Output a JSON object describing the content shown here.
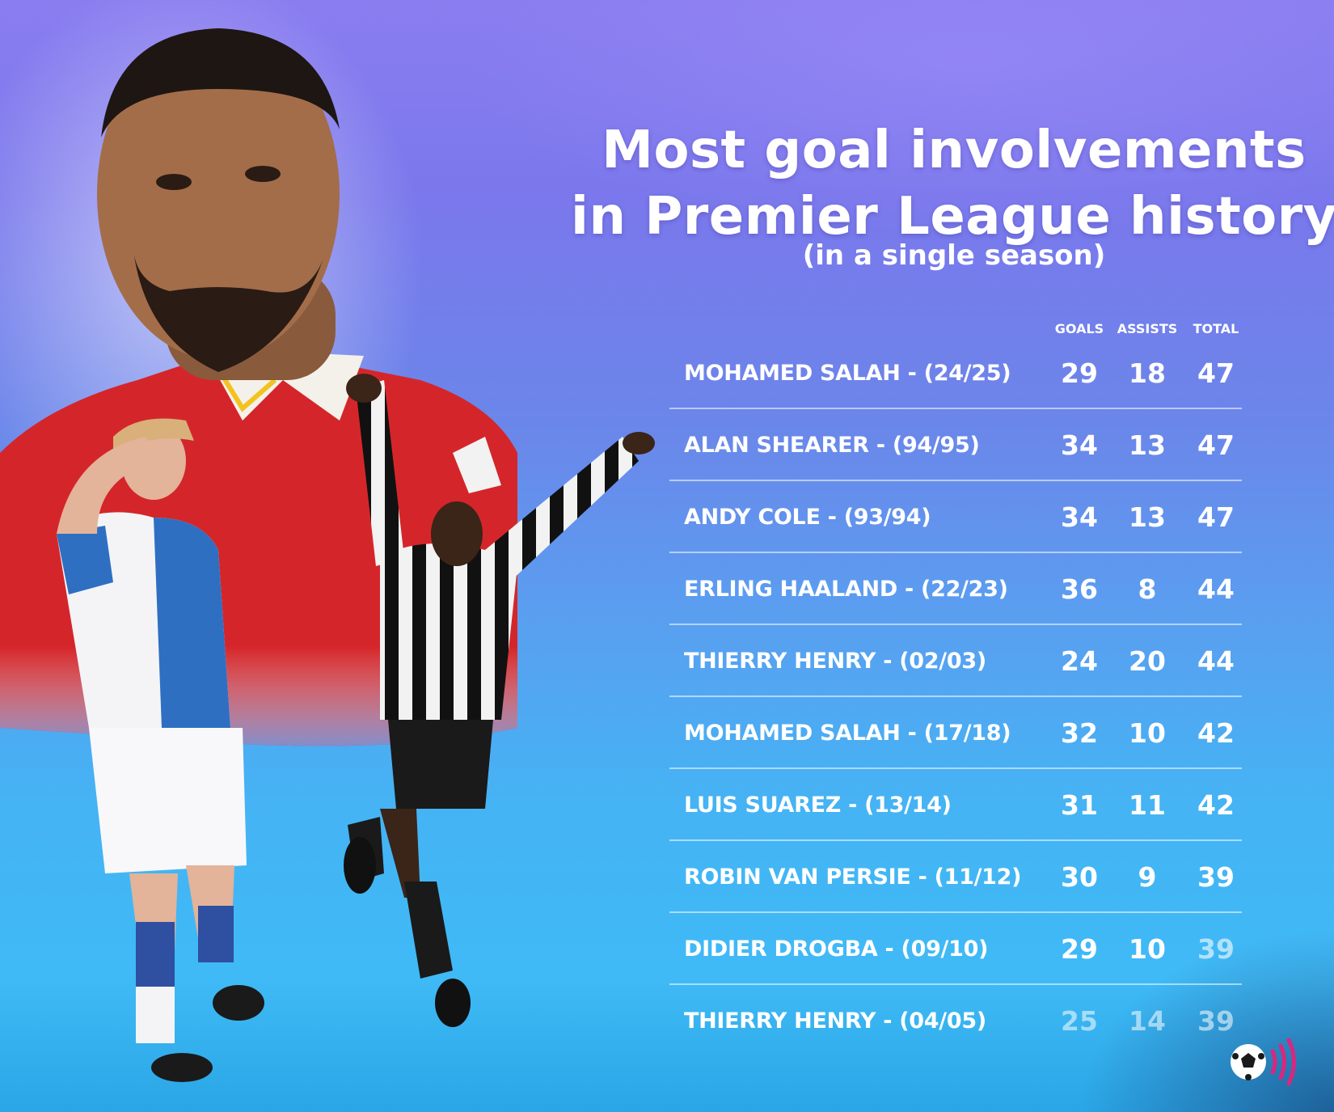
{
  "title_line1": "Most goal involvements",
  "title_line2": "in Premier League history",
  "subtitle": "(in a single season)",
  "columns": {
    "goals": "GOALS",
    "assists": "ASSISTS",
    "total": "TOTAL"
  },
  "chart_data": {
    "type": "table",
    "title": "Most goal involvements in Premier League history",
    "subtitle": "(in a single season)",
    "columns": [
      "GOALS",
      "ASSISTS",
      "TOTAL"
    ],
    "rows": [
      {
        "player": "MOHAMED SALAH - (24/25)",
        "goals": "29",
        "assists": "18",
        "total": "47"
      },
      {
        "player": "ALAN SHEARER - (94/95)",
        "goals": "34",
        "assists": "13",
        "total": "47"
      },
      {
        "player": "ANDY COLE - (93/94)",
        "goals": "34",
        "assists": "13",
        "total": "47"
      },
      {
        "player": "ERLING HAALAND - (22/23)",
        "goals": "36",
        "assists": "8",
        "total": "44"
      },
      {
        "player": "THIERRY HENRY - (02/03)",
        "goals": "24",
        "assists": "20",
        "total": "44"
      },
      {
        "player": "MOHAMED SALAH - (17/18)",
        "goals": "32",
        "assists": "10",
        "total": "42"
      },
      {
        "player": "LUIS SUAREZ - (13/14)",
        "goals": "31",
        "assists": "11",
        "total": "42"
      },
      {
        "player": "ROBIN VAN PERSIE - (11/12)",
        "goals": "30",
        "assists": "9",
        "total": "39"
      },
      {
        "player": "DIDIER DROGBA - (09/10)",
        "goals": "29",
        "assists": "10",
        "total": "39"
      },
      {
        "player": "THIERRY HENRY - (04/05)",
        "goals": "25",
        "assists": "14",
        "total": "39"
      }
    ]
  },
  "icons": {
    "logo": "football-sound-logo-icon"
  },
  "colors": {
    "text": "#ffffff",
    "logo_accent": "#d8277f"
  }
}
